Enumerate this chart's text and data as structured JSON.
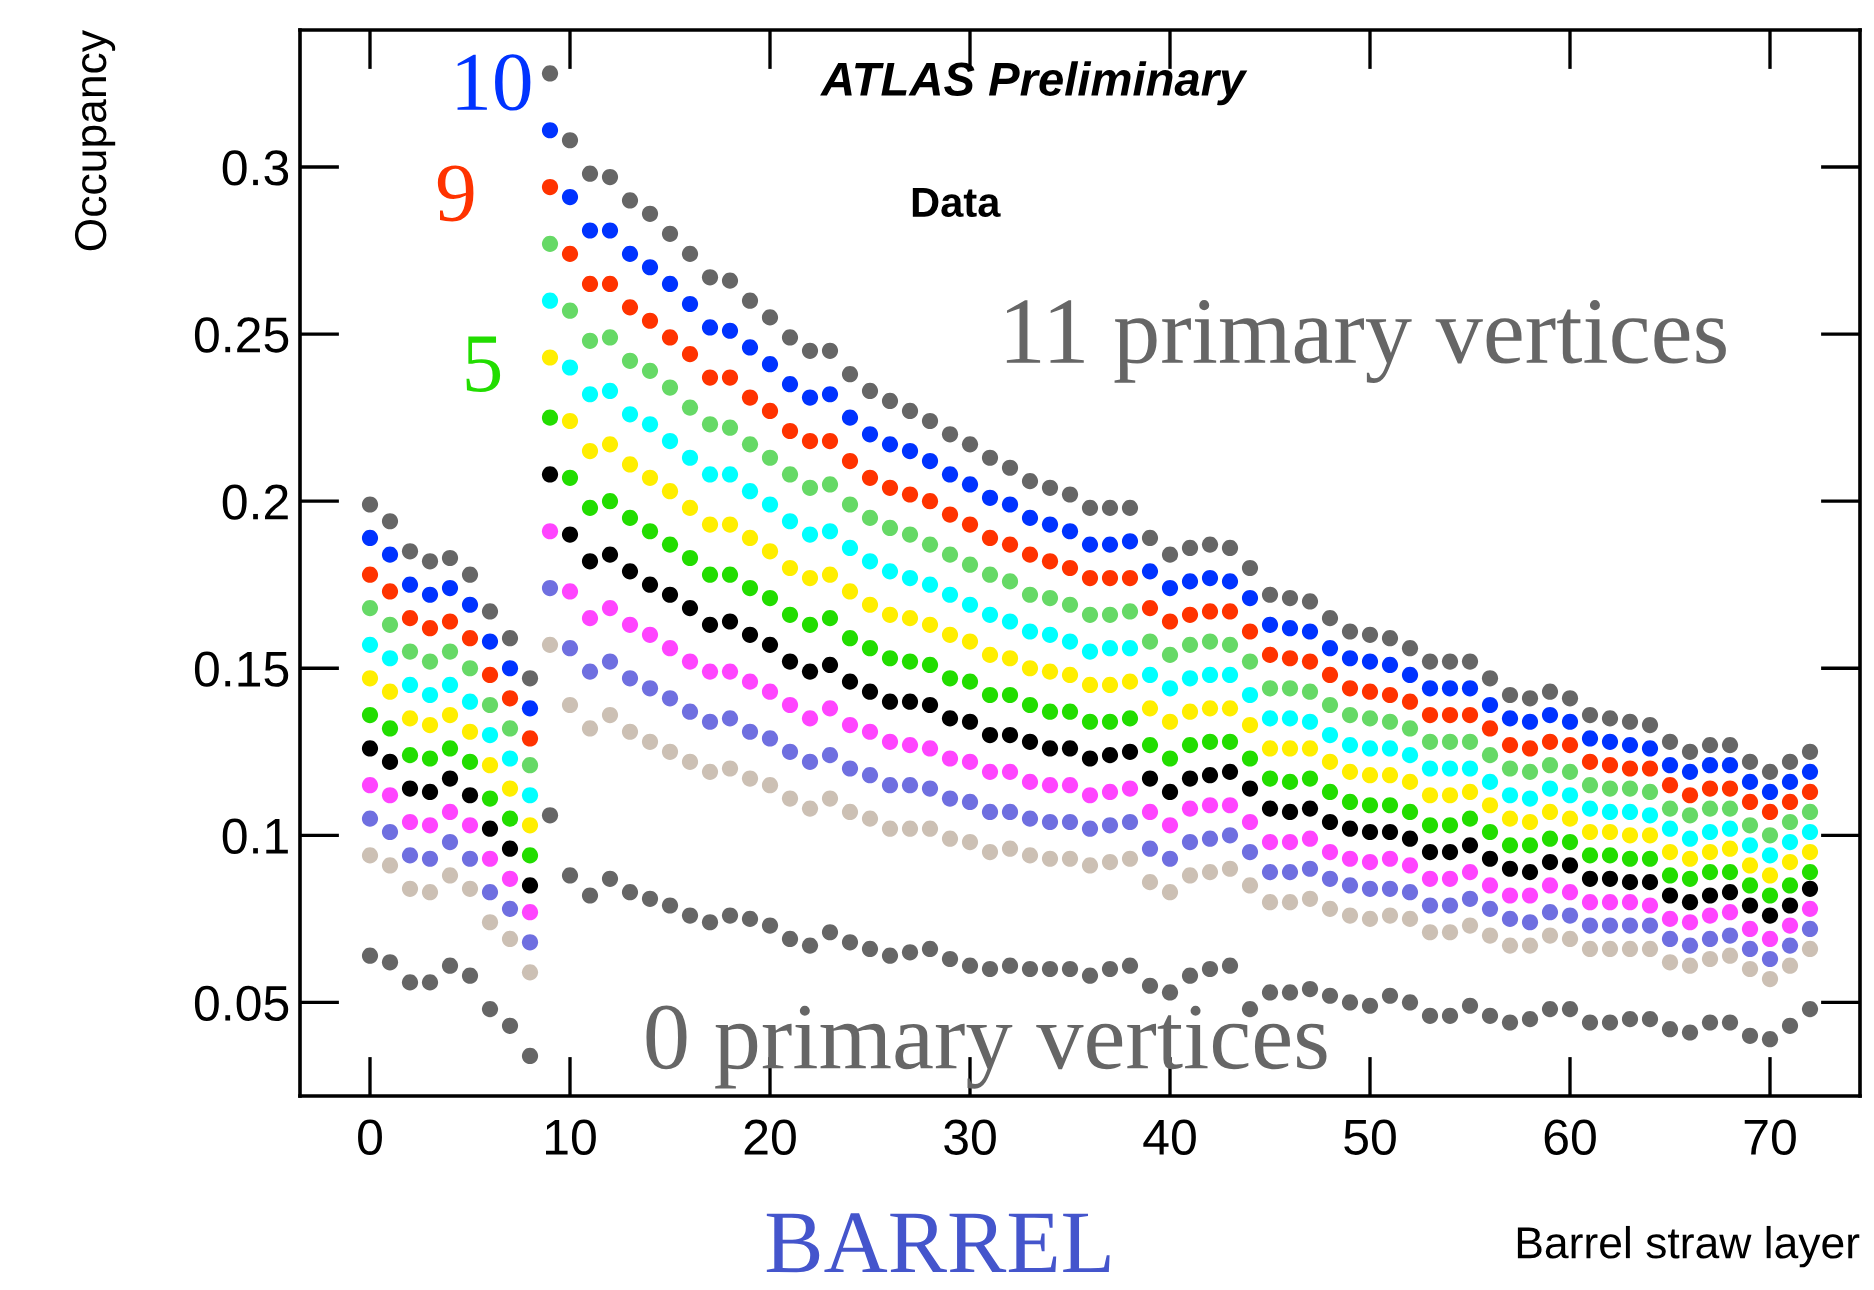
{
  "chart_data": {
    "type": "scatter",
    "xlabel": "Barrel straw layer",
    "ylabel": "Occupancy",
    "marker": "circle",
    "annotations": [
      "ATLAS Preliminary",
      "Data",
      "BARREL"
    ],
    "xlim": [
      -3.5,
      74.5
    ],
    "ylim": [
      0.022,
      0.341
    ],
    "xticks": [
      0,
      10,
      20,
      30,
      40,
      50,
      60,
      70
    ],
    "yticks": [
      0.05,
      0.1,
      0.15,
      0.2,
      0.25,
      0.3
    ],
    "x": [
      0,
      1,
      2,
      3,
      4,
      5,
      6,
      7,
      8,
      9,
      10,
      11,
      12,
      13,
      14,
      15,
      16,
      17,
      18,
      19,
      20,
      21,
      22,
      23,
      24,
      25,
      26,
      27,
      28,
      29,
      30,
      31,
      32,
      33,
      34,
      35,
      36,
      37,
      38,
      39,
      40,
      41,
      42,
      43,
      44,
      45,
      46,
      47,
      48,
      49,
      50,
      51,
      52,
      53,
      54,
      55,
      56,
      57,
      58,
      59,
      60,
      61,
      62,
      63,
      64,
      65,
      66,
      67,
      68,
      69,
      70,
      71,
      72
    ],
    "series": [
      {
        "name": "0 primary vertices",
        "color": "#666666",
        "values": [
          0.064,
          0.062,
          0.056,
          0.056,
          0.061,
          0.058,
          0.048,
          0.043,
          0.034,
          0.106,
          0.088,
          0.082,
          0.087,
          0.083,
          0.081,
          0.079,
          0.076,
          0.074,
          0.076,
          0.075,
          0.073,
          0.069,
          0.067,
          0.071,
          0.068,
          0.066,
          0.064,
          0.065,
          0.066,
          0.063,
          0.061,
          0.06,
          0.061,
          0.06,
          0.06,
          0.06,
          0.058,
          0.06,
          0.061,
          0.055,
          0.053,
          0.058,
          0.06,
          0.061,
          0.048,
          0.053,
          0.053,
          0.054,
          0.052,
          0.05,
          0.049,
          0.052,
          0.05,
          0.046,
          0.046,
          0.049,
          0.046,
          0.044,
          0.045,
          0.048,
          0.048,
          0.044,
          0.044,
          0.045,
          0.045,
          0.042,
          0.041,
          0.044,
          0.044,
          0.04,
          0.039,
          0.043,
          0.048
        ]
      },
      {
        "color": "#ccc0b4",
        "values": [
          0.094,
          0.091,
          0.084,
          0.083,
          0.088,
          0.084,
          0.074,
          0.069,
          0.059,
          0.157,
          0.139,
          0.132,
          0.136,
          0.131,
          0.128,
          0.125,
          0.122,
          0.119,
          0.12,
          0.117,
          0.115,
          0.111,
          0.108,
          0.111,
          0.107,
          0.105,
          0.102,
          0.102,
          0.102,
          0.099,
          0.098,
          0.095,
          0.096,
          0.094,
          0.093,
          0.093,
          0.091,
          0.092,
          0.093,
          0.086,
          0.083,
          0.088,
          0.089,
          0.09,
          0.085,
          0.08,
          0.08,
          0.081,
          0.078,
          0.076,
          0.075,
          0.076,
          0.075,
          0.071,
          0.071,
          0.073,
          0.07,
          0.067,
          0.067,
          0.07,
          0.069,
          0.066,
          0.066,
          0.066,
          0.066,
          0.062,
          0.061,
          0.063,
          0.064,
          0.06,
          0.057,
          0.061,
          0.066
        ]
      },
      {
        "color": "#6f6fe0",
        "values": [
          0.105,
          0.101,
          0.094,
          0.093,
          0.098,
          0.093,
          0.083,
          0.078,
          0.068,
          0.174,
          0.156,
          0.149,
          0.152,
          0.147,
          0.144,
          0.141,
          0.137,
          0.134,
          0.135,
          0.131,
          0.129,
          0.125,
          0.122,
          0.124,
          0.12,
          0.118,
          0.115,
          0.115,
          0.114,
          0.111,
          0.11,
          0.107,
          0.107,
          0.105,
          0.104,
          0.104,
          0.102,
          0.103,
          0.104,
          0.096,
          0.093,
          0.098,
          0.099,
          0.1,
          0.095,
          0.089,
          0.089,
          0.09,
          0.087,
          0.085,
          0.084,
          0.084,
          0.083,
          0.079,
          0.079,
          0.081,
          0.078,
          0.075,
          0.074,
          0.077,
          0.076,
          0.073,
          0.073,
          0.073,
          0.073,
          0.069,
          0.067,
          0.069,
          0.07,
          0.066,
          0.063,
          0.067,
          0.072
        ]
      },
      {
        "color": "#ff44ff",
        "values": [
          0.115,
          0.112,
          0.104,
          0.103,
          0.107,
          0.103,
          0.093,
          0.087,
          0.077,
          0.191,
          0.173,
          0.165,
          0.168,
          0.163,
          0.16,
          0.156,
          0.152,
          0.149,
          0.149,
          0.146,
          0.143,
          0.139,
          0.135,
          0.138,
          0.133,
          0.131,
          0.128,
          0.127,
          0.126,
          0.123,
          0.122,
          0.119,
          0.119,
          0.116,
          0.115,
          0.115,
          0.112,
          0.113,
          0.114,
          0.107,
          0.103,
          0.108,
          0.109,
          0.109,
          0.104,
          0.098,
          0.098,
          0.099,
          0.095,
          0.093,
          0.092,
          0.093,
          0.091,
          0.087,
          0.087,
          0.089,
          0.085,
          0.082,
          0.082,
          0.085,
          0.083,
          0.08,
          0.08,
          0.08,
          0.079,
          0.075,
          0.074,
          0.076,
          0.077,
          0.072,
          0.069,
          0.073,
          0.078
        ]
      },
      {
        "color": "#000000",
        "values": [
          0.126,
          0.122,
          0.114,
          0.113,
          0.117,
          0.112,
          0.102,
          0.096,
          0.085,
          0.208,
          0.19,
          0.182,
          0.184,
          0.179,
          0.175,
          0.172,
          0.168,
          0.163,
          0.164,
          0.16,
          0.157,
          0.152,
          0.149,
          0.151,
          0.146,
          0.143,
          0.14,
          0.14,
          0.139,
          0.135,
          0.134,
          0.13,
          0.13,
          0.128,
          0.126,
          0.126,
          0.123,
          0.124,
          0.125,
          0.117,
          0.113,
          0.117,
          0.118,
          0.119,
          0.114,
          0.108,
          0.107,
          0.108,
          0.104,
          0.102,
          0.101,
          0.101,
          0.099,
          0.095,
          0.095,
          0.097,
          0.093,
          0.09,
          0.089,
          0.092,
          0.091,
          0.087,
          0.087,
          0.086,
          0.086,
          0.082,
          0.08,
          0.082,
          0.083,
          0.079,
          0.076,
          0.079,
          0.084
        ]
      },
      {
        "name": "5",
        "color": "#22dd00",
        "values": [
          0.136,
          0.132,
          0.124,
          0.123,
          0.126,
          0.122,
          0.111,
          0.105,
          0.094,
          0.225,
          0.207,
          0.198,
          0.2,
          0.195,
          0.191,
          0.187,
          0.183,
          0.178,
          0.178,
          0.174,
          0.171,
          0.166,
          0.163,
          0.165,
          0.159,
          0.156,
          0.153,
          0.152,
          0.151,
          0.147,
          0.146,
          0.142,
          0.142,
          0.139,
          0.137,
          0.137,
          0.134,
          0.134,
          0.135,
          0.127,
          0.123,
          0.127,
          0.128,
          0.128,
          0.123,
          0.117,
          0.116,
          0.117,
          0.113,
          0.11,
          0.109,
          0.109,
          0.107,
          0.103,
          0.103,
          0.105,
          0.101,
          0.097,
          0.097,
          0.099,
          0.098,
          0.094,
          0.094,
          0.093,
          0.093,
          0.088,
          0.087,
          0.089,
          0.089,
          0.085,
          0.082,
          0.085,
          0.089
        ]
      },
      {
        "color": "#ffee00",
        "values": [
          0.147,
          0.143,
          0.135,
          0.133,
          0.136,
          0.131,
          0.121,
          0.114,
          0.103,
          0.243,
          0.224,
          0.215,
          0.217,
          0.211,
          0.207,
          0.203,
          0.198,
          0.193,
          0.193,
          0.189,
          0.185,
          0.18,
          0.177,
          0.178,
          0.173,
          0.169,
          0.166,
          0.165,
          0.163,
          0.16,
          0.158,
          0.154,
          0.153,
          0.15,
          0.149,
          0.148,
          0.145,
          0.145,
          0.146,
          0.138,
          0.134,
          0.137,
          0.138,
          0.138,
          0.133,
          0.126,
          0.126,
          0.126,
          0.122,
          0.119,
          0.118,
          0.118,
          0.116,
          0.112,
          0.112,
          0.113,
          0.109,
          0.105,
          0.104,
          0.107,
          0.105,
          0.101,
          0.101,
          0.1,
          0.1,
          0.095,
          0.093,
          0.095,
          0.096,
          0.091,
          0.088,
          0.092,
          0.095
        ]
      },
      {
        "color": "#00ffff",
        "values": [
          0.157,
          0.153,
          0.145,
          0.142,
          0.145,
          0.14,
          0.13,
          0.123,
          0.112,
          0.26,
          0.24,
          0.232,
          0.233,
          0.226,
          0.223,
          0.218,
          0.213,
          0.208,
          0.208,
          0.203,
          0.199,
          0.194,
          0.19,
          0.191,
          0.186,
          0.182,
          0.179,
          0.177,
          0.175,
          0.172,
          0.169,
          0.166,
          0.164,
          0.161,
          0.16,
          0.158,
          0.155,
          0.156,
          0.156,
          0.148,
          0.144,
          0.147,
          0.148,
          0.148,
          0.142,
          0.135,
          0.135,
          0.134,
          0.13,
          0.127,
          0.126,
          0.126,
          0.124,
          0.12,
          0.12,
          0.12,
          0.116,
          0.112,
          0.111,
          0.114,
          0.112,
          0.108,
          0.107,
          0.107,
          0.106,
          0.102,
          0.099,
          0.101,
          0.102,
          0.097,
          0.094,
          0.098,
          0.101
        ]
      },
      {
        "color": "#66d966",
        "values": [
          0.168,
          0.163,
          0.155,
          0.152,
          0.155,
          0.15,
          0.139,
          0.132,
          0.121,
          0.277,
          0.257,
          0.248,
          0.249,
          0.242,
          0.239,
          0.234,
          0.228,
          0.223,
          0.222,
          0.217,
          0.213,
          0.208,
          0.204,
          0.205,
          0.199,
          0.195,
          0.192,
          0.19,
          0.187,
          0.184,
          0.181,
          0.178,
          0.176,
          0.172,
          0.171,
          0.169,
          0.166,
          0.166,
          0.167,
          0.158,
          0.154,
          0.157,
          0.158,
          0.157,
          0.152,
          0.144,
          0.144,
          0.143,
          0.139,
          0.136,
          0.135,
          0.134,
          0.132,
          0.128,
          0.128,
          0.128,
          0.124,
          0.12,
          0.119,
          0.121,
          0.119,
          0.115,
          0.114,
          0.114,
          0.113,
          0.108,
          0.106,
          0.108,
          0.108,
          0.103,
          0.1,
          0.104,
          0.107
        ]
      },
      {
        "name": "9",
        "color": "#ff3300",
        "values": [
          0.178,
          0.173,
          0.165,
          0.162,
          0.164,
          0.159,
          0.148,
          0.141,
          0.129,
          0.294,
          0.274,
          0.265,
          0.265,
          0.258,
          0.254,
          0.249,
          0.244,
          0.237,
          0.237,
          0.231,
          0.227,
          0.221,
          0.218,
          0.218,
          0.212,
          0.207,
          0.204,
          0.202,
          0.2,
          0.196,
          0.193,
          0.189,
          0.187,
          0.184,
          0.182,
          0.18,
          0.177,
          0.177,
          0.177,
          0.168,
          0.164,
          0.166,
          0.167,
          0.167,
          0.161,
          0.154,
          0.153,
          0.152,
          0.148,
          0.144,
          0.143,
          0.142,
          0.14,
          0.136,
          0.136,
          0.136,
          0.132,
          0.127,
          0.126,
          0.128,
          0.127,
          0.122,
          0.121,
          0.12,
          0.12,
          0.115,
          0.112,
          0.114,
          0.114,
          0.11,
          0.107,
          0.11,
          0.113
        ]
      },
      {
        "name": "10",
        "color": "#0033ff",
        "values": [
          0.189,
          0.184,
          0.175,
          0.172,
          0.174,
          0.169,
          0.158,
          0.15,
          0.138,
          0.311,
          0.291,
          0.281,
          0.281,
          0.274,
          0.27,
          0.265,
          0.259,
          0.252,
          0.251,
          0.246,
          0.241,
          0.235,
          0.231,
          0.232,
          0.225,
          0.22,
          0.217,
          0.215,
          0.212,
          0.208,
          0.205,
          0.201,
          0.199,
          0.195,
          0.193,
          0.191,
          0.187,
          0.187,
          0.188,
          0.179,
          0.174,
          0.176,
          0.177,
          0.176,
          0.171,
          0.163,
          0.162,
          0.161,
          0.156,
          0.153,
          0.152,
          0.151,
          0.148,
          0.144,
          0.144,
          0.144,
          0.139,
          0.135,
          0.134,
          0.136,
          0.134,
          0.129,
          0.128,
          0.127,
          0.126,
          0.121,
          0.119,
          0.121,
          0.121,
          0.116,
          0.113,
          0.116,
          0.119
        ]
      },
      {
        "name": "11 primary vertices",
        "color": "#666666",
        "values": [
          0.199,
          0.194,
          0.185,
          0.182,
          0.183,
          0.178,
          0.167,
          0.159,
          0.147,
          0.328,
          0.308,
          0.298,
          0.297,
          0.29,
          0.286,
          0.28,
          0.274,
          0.267,
          0.266,
          0.26,
          0.255,
          0.249,
          0.245,
          0.245,
          0.238,
          0.233,
          0.23,
          0.227,
          0.224,
          0.22,
          0.217,
          0.213,
          0.21,
          0.206,
          0.204,
          0.202,
          0.198,
          0.198,
          0.198,
          0.189,
          0.184,
          0.186,
          0.187,
          0.186,
          0.18,
          0.172,
          0.171,
          0.17,
          0.165,
          0.161,
          0.16,
          0.159,
          0.156,
          0.152,
          0.152,
          0.152,
          0.147,
          0.142,
          0.141,
          0.143,
          0.141,
          0.136,
          0.135,
          0.134,
          0.133,
          0.128,
          0.125,
          0.127,
          0.127,
          0.122,
          0.119,
          0.122,
          0.125
        ]
      }
    ]
  }
}
